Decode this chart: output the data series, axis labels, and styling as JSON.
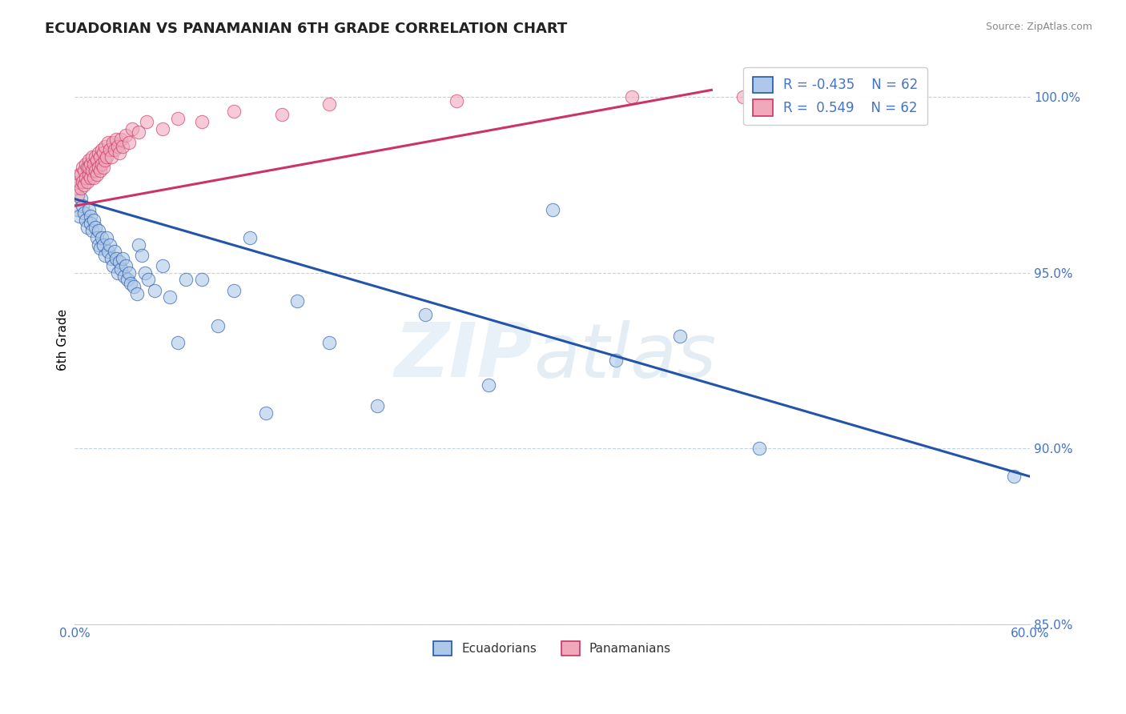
{
  "title": "ECUADORIAN VS PANAMANIAN 6TH GRADE CORRELATION CHART",
  "source_text": "Source: ZipAtlas.com",
  "ylabel": "6th Grade",
  "x_min": 0.0,
  "x_max": 0.6,
  "y_min": 0.868,
  "y_max": 1.012,
  "y_ticks": [
    0.85,
    0.9,
    0.95,
    1.0
  ],
  "y_tick_labels": [
    "85.0%",
    "90.0%",
    "95.0%",
    "100.0%"
  ],
  "blue_R": -0.435,
  "blue_N": 62,
  "pink_R": 0.549,
  "pink_N": 62,
  "blue_color": "#adc8e8",
  "pink_color": "#f0a8bb",
  "blue_line_color": "#2255aa",
  "pink_line_color": "#cc3366",
  "legend_label_blue": "Ecuadorians",
  "legend_label_pink": "Panamanians",
  "blue_trend_x0": 0.0,
  "blue_trend_y0": 0.971,
  "blue_trend_x1": 0.6,
  "blue_trend_y1": 0.892,
  "pink_trend_x0": 0.0,
  "pink_trend_y0": 0.969,
  "pink_trend_x1": 0.4,
  "pink_trend_y1": 1.002,
  "blue_scatter_x": [
    0.002,
    0.003,
    0.004,
    0.005,
    0.006,
    0.007,
    0.008,
    0.009,
    0.01,
    0.01,
    0.011,
    0.012,
    0.013,
    0.014,
    0.015,
    0.015,
    0.016,
    0.017,
    0.018,
    0.019,
    0.02,
    0.021,
    0.022,
    0.023,
    0.024,
    0.025,
    0.026,
    0.027,
    0.028,
    0.029,
    0.03,
    0.031,
    0.032,
    0.033,
    0.034,
    0.035,
    0.037,
    0.039,
    0.04,
    0.042,
    0.044,
    0.046,
    0.05,
    0.055,
    0.06,
    0.065,
    0.07,
    0.08,
    0.09,
    0.1,
    0.11,
    0.12,
    0.14,
    0.16,
    0.19,
    0.22,
    0.26,
    0.3,
    0.34,
    0.38,
    0.43,
    0.59
  ],
  "blue_scatter_y": [
    0.968,
    0.966,
    0.971,
    0.969,
    0.967,
    0.965,
    0.963,
    0.968,
    0.966,
    0.964,
    0.962,
    0.965,
    0.963,
    0.96,
    0.958,
    0.962,
    0.957,
    0.96,
    0.958,
    0.955,
    0.96,
    0.956,
    0.958,
    0.954,
    0.952,
    0.956,
    0.954,
    0.95,
    0.953,
    0.951,
    0.954,
    0.949,
    0.952,
    0.948,
    0.95,
    0.947,
    0.946,
    0.944,
    0.958,
    0.955,
    0.95,
    0.948,
    0.945,
    0.952,
    0.943,
    0.93,
    0.948,
    0.948,
    0.935,
    0.945,
    0.96,
    0.91,
    0.942,
    0.93,
    0.912,
    0.938,
    0.918,
    0.968,
    0.925,
    0.932,
    0.9,
    0.892
  ],
  "pink_scatter_x": [
    0.001,
    0.002,
    0.003,
    0.003,
    0.004,
    0.004,
    0.005,
    0.005,
    0.006,
    0.006,
    0.007,
    0.007,
    0.008,
    0.008,
    0.009,
    0.009,
    0.009,
    0.01,
    0.01,
    0.011,
    0.011,
    0.012,
    0.012,
    0.013,
    0.013,
    0.014,
    0.014,
    0.015,
    0.015,
    0.016,
    0.016,
    0.017,
    0.017,
    0.018,
    0.018,
    0.019,
    0.019,
    0.02,
    0.021,
    0.022,
    0.023,
    0.024,
    0.025,
    0.026,
    0.027,
    0.028,
    0.029,
    0.03,
    0.032,
    0.034,
    0.036,
    0.04,
    0.045,
    0.055,
    0.065,
    0.08,
    0.1,
    0.13,
    0.16,
    0.24,
    0.35,
    0.42
  ],
  "pink_scatter_y": [
    0.974,
    0.972,
    0.976,
    0.978,
    0.974,
    0.978,
    0.976,
    0.98,
    0.975,
    0.979,
    0.977,
    0.981,
    0.976,
    0.98,
    0.978,
    0.982,
    0.98,
    0.977,
    0.981,
    0.979,
    0.983,
    0.977,
    0.981,
    0.979,
    0.983,
    0.978,
    0.982,
    0.98,
    0.984,
    0.979,
    0.983,
    0.981,
    0.985,
    0.98,
    0.984,
    0.982,
    0.986,
    0.983,
    0.987,
    0.985,
    0.983,
    0.987,
    0.985,
    0.988,
    0.986,
    0.984,
    0.988,
    0.986,
    0.989,
    0.987,
    0.991,
    0.99,
    0.993,
    0.991,
    0.994,
    0.993,
    0.996,
    0.995,
    0.998,
    0.999,
    1.0,
    1.0
  ]
}
